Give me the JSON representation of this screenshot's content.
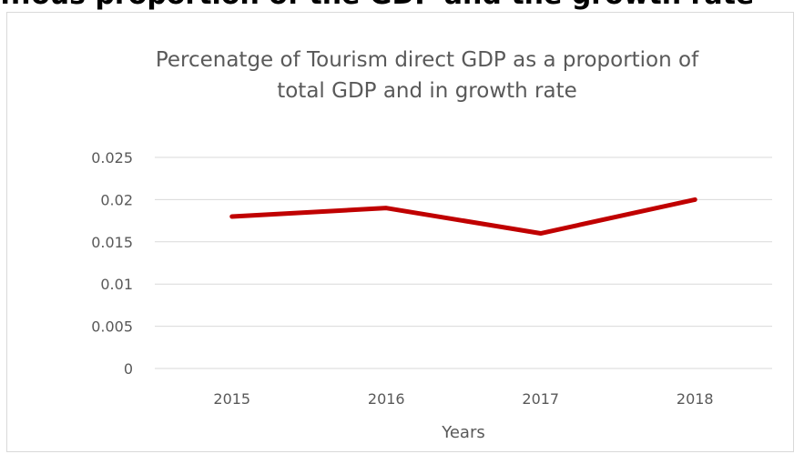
{
  "heading_fragment": "...ous proportion of the GDP and the growth rate",
  "chart_data": {
    "type": "line",
    "title_lines": [
      "Percenatge of Tourism direct GDP as a proportion of",
      "total GDP and in growth rate"
    ],
    "xlabel": "Years",
    "ylabel": "",
    "categories": [
      "2015",
      "2016",
      "2017",
      "2018"
    ],
    "series": [
      {
        "values": [
          0.018,
          0.019,
          0.016,
          0.02
        ],
        "color": "#c00000"
      }
    ],
    "ylim": [
      0,
      0.025
    ],
    "yticks": [
      0,
      0.005,
      0.01,
      0.015,
      0.02,
      0.025
    ],
    "ytick_labels": [
      "0",
      "0.005",
      "0.01",
      "0.015",
      "0.02",
      "0.025"
    ],
    "grid": true,
    "legend": "none"
  }
}
